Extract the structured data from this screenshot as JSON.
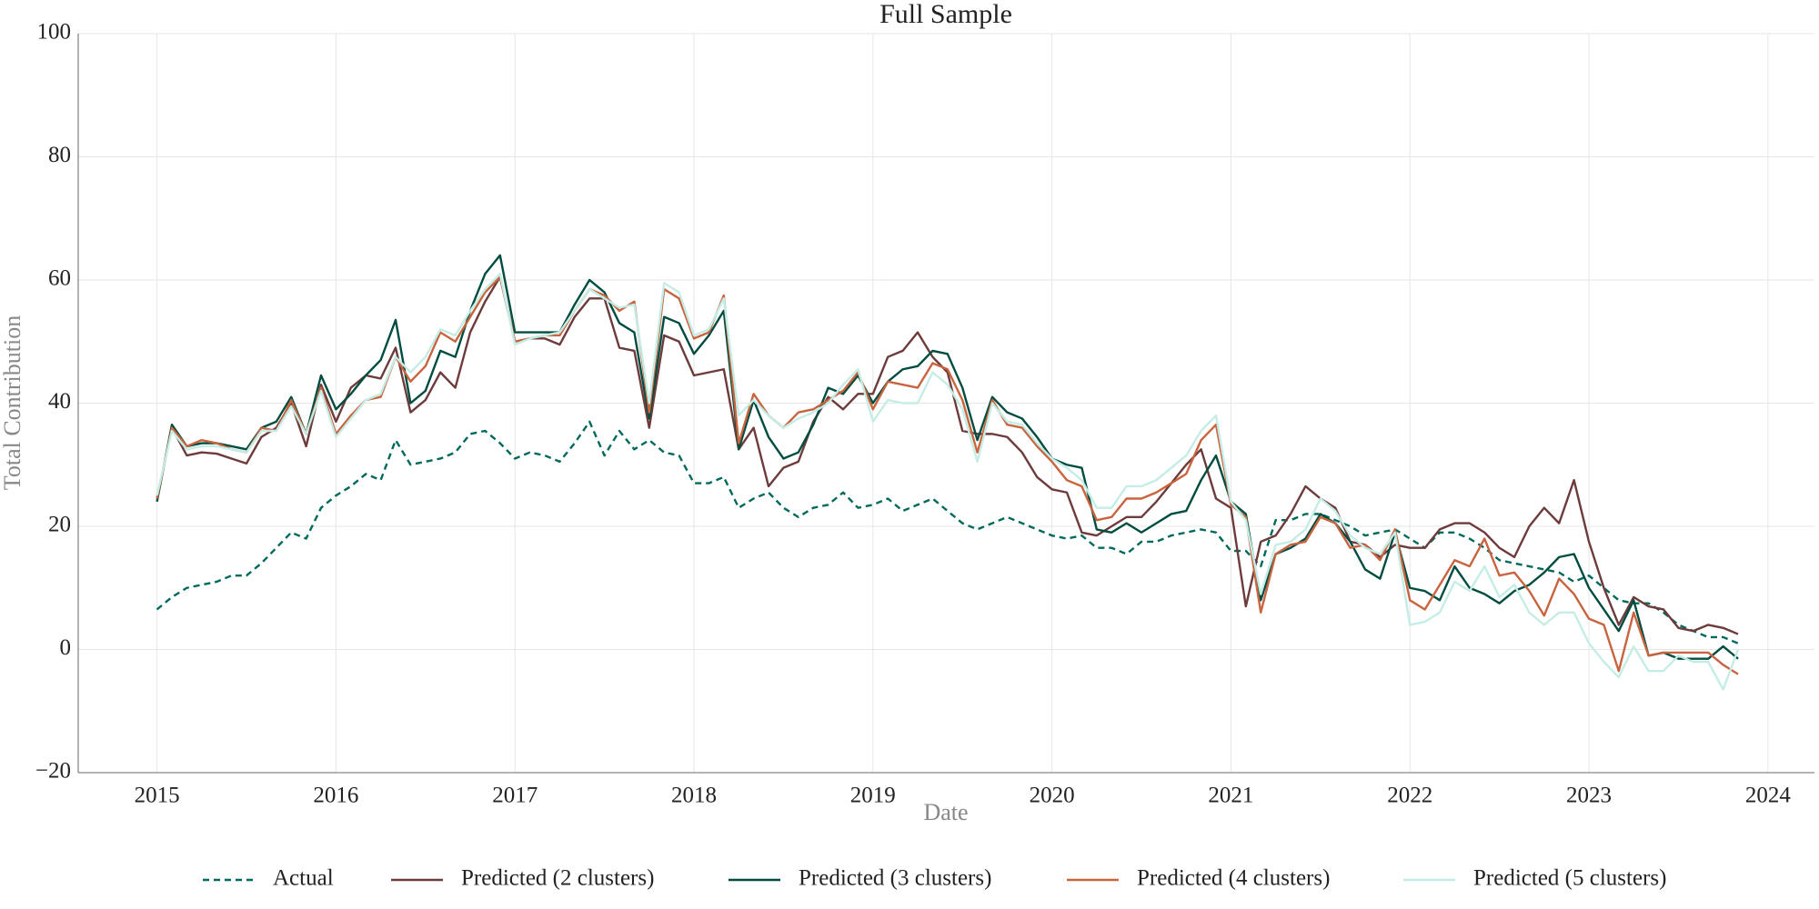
{
  "chart_data": {
    "type": "line",
    "title": "Full Sample",
    "xlabel": "Date",
    "ylabel": "Total Contribution",
    "x": [
      "2015-01",
      "2015-02",
      "2015-03",
      "2015-04",
      "2015-05",
      "2015-06",
      "2015-07",
      "2015-08",
      "2015-09",
      "2015-10",
      "2015-11",
      "2015-12",
      "2016-01",
      "2016-02",
      "2016-03",
      "2016-04",
      "2016-05",
      "2016-06",
      "2016-07",
      "2016-08",
      "2016-09",
      "2016-10",
      "2016-11",
      "2016-12",
      "2017-01",
      "2017-02",
      "2017-03",
      "2017-04",
      "2017-05",
      "2017-06",
      "2017-07",
      "2017-08",
      "2017-09",
      "2017-10",
      "2017-11",
      "2017-12",
      "2018-01",
      "2018-02",
      "2018-03",
      "2018-04",
      "2018-05",
      "2018-06",
      "2018-07",
      "2018-08",
      "2018-09",
      "2018-10",
      "2018-11",
      "2018-12",
      "2019-01",
      "2019-02",
      "2019-03",
      "2019-04",
      "2019-05",
      "2019-06",
      "2019-07",
      "2019-08",
      "2019-09",
      "2019-10",
      "2019-11",
      "2019-12",
      "2020-01",
      "2020-02",
      "2020-03",
      "2020-04",
      "2020-05",
      "2020-06",
      "2020-07",
      "2020-08",
      "2020-09",
      "2020-10",
      "2020-11",
      "2020-12",
      "2021-01",
      "2021-02",
      "2021-03",
      "2021-04",
      "2021-05",
      "2021-06",
      "2021-07",
      "2021-08",
      "2021-09",
      "2021-10",
      "2021-11",
      "2021-12",
      "2022-01",
      "2022-02",
      "2022-03",
      "2022-04",
      "2022-05",
      "2022-06",
      "2022-07",
      "2022-08",
      "2022-09",
      "2022-10",
      "2022-11",
      "2022-12",
      "2023-01",
      "2023-02",
      "2023-03",
      "2023-04",
      "2023-05",
      "2023-06",
      "2023-07",
      "2023-08",
      "2023-09",
      "2023-10",
      "2023-11"
    ],
    "series": [
      {
        "name": "Actual",
        "color": "#00695c",
        "linestyle": "dashed",
        "values": [
          6.5,
          8.5,
          10,
          10.5,
          11,
          12,
          12,
          14,
          16.5,
          19,
          18,
          23,
          25,
          26.5,
          28.5,
          27.5,
          34,
          30,
          30.5,
          31,
          32,
          35,
          35.5,
          33.5,
          31,
          32,
          31.5,
          30.5,
          33.5,
          37,
          31.5,
          35.5,
          32.5,
          34,
          32,
          31.5,
          27,
          27,
          28,
          23,
          24.5,
          25.5,
          23,
          21.5,
          23,
          23.5,
          25.5,
          23,
          23.5,
          24.5,
          22.5,
          23.5,
          24.5,
          22.5,
          20.5,
          19.5,
          20.5,
          21.5,
          20.5,
          19.5,
          18.5,
          18,
          18.5,
          16.5,
          16.5,
          15.5,
          17.5,
          17.5,
          18.5,
          19,
          19.5,
          19,
          16,
          16,
          13.5,
          21,
          21,
          22,
          22,
          21,
          20,
          18.5,
          19,
          19.5,
          18,
          16.5,
          19,
          19,
          18,
          16.5,
          14.5,
          14,
          13.5,
          13,
          12.5,
          11,
          12,
          10,
          8,
          7.5,
          7.5,
          6,
          4,
          3,
          2,
          2,
          1
        ]
      },
      {
        "name": "Predicted (2 clusters)",
        "color": "#6d3b3b",
        "linestyle": "solid",
        "values": [
          24.5,
          36,
          31.5,
          32,
          31.8,
          31,
          30.2,
          34.5,
          36,
          40,
          33,
          43,
          37,
          42.5,
          44.5,
          44,
          49,
          38.5,
          40.5,
          45,
          42.5,
          51.5,
          56.5,
          60.5,
          50,
          50.5,
          50.5,
          49.5,
          54,
          57,
          57,
          49,
          48.5,
          36,
          51,
          50,
          44.5,
          45,
          45.5,
          32.5,
          36,
          26.5,
          29.5,
          30.5,
          37,
          41,
          39,
          41.5,
          41.5,
          47.5,
          48.5,
          51.5,
          47.5,
          45,
          35.5,
          35,
          35,
          34.5,
          32,
          28,
          26,
          25.5,
          19,
          18.5,
          20,
          21.5,
          21.5,
          24,
          27,
          30,
          32.5,
          24.5,
          23,
          7,
          17.5,
          18.5,
          22,
          26.5,
          24.5,
          23,
          17.5,
          17,
          15,
          17,
          16.5,
          16.5,
          19.5,
          20.5,
          20.5,
          19,
          16.5,
          15,
          20,
          23,
          20.5,
          27.5,
          17.5,
          10,
          4,
          8.5,
          7,
          6.5,
          3.5,
          3,
          4,
          3.5,
          2.5
        ]
      },
      {
        "name": "Predicted (3 clusters)",
        "color": "#004d40",
        "linestyle": "solid",
        "values": [
          24,
          36.5,
          33,
          33.5,
          33.5,
          33,
          32.5,
          36,
          37,
          41,
          35,
          44.5,
          39,
          41.5,
          44.5,
          47,
          53.5,
          40,
          42,
          48.5,
          47.5,
          55,
          61,
          64,
          51.5,
          51.5,
          51.5,
          51.5,
          56,
          60,
          58,
          53,
          51.5,
          37.5,
          54,
          53,
          48,
          51,
          55,
          32.5,
          40.5,
          34.5,
          31,
          32,
          36.5,
          42.5,
          41.5,
          44.5,
          40,
          43.5,
          45.5,
          46,
          48.5,
          48,
          42.5,
          34,
          41,
          38.5,
          37.5,
          34.5,
          31,
          30,
          29.5,
          19.5,
          19,
          20.5,
          19,
          20.5,
          22,
          22.5,
          27.5,
          31.5,
          24,
          22,
          8,
          15.5,
          16.5,
          18,
          22,
          20.5,
          17.5,
          13,
          11.5,
          19,
          10,
          9.5,
          8,
          13.5,
          10,
          9,
          7.5,
          9.5,
          10.5,
          12.5,
          15,
          15.5,
          10,
          6.5,
          3,
          8,
          -1,
          -0.5,
          -1.5,
          -1.5,
          -1.5,
          0.5,
          -1.5
        ]
      },
      {
        "name": "Predicted (4 clusters)",
        "color": "#c8643f",
        "linestyle": "solid",
        "values": [
          24.5,
          36,
          33,
          34,
          33.5,
          32.5,
          32,
          36,
          35.5,
          40.5,
          35,
          42.5,
          35,
          38,
          40.5,
          41,
          47.5,
          43.5,
          46,
          51.5,
          50,
          54,
          58,
          60.5,
          50,
          50.5,
          51,
          51,
          55,
          58.5,
          57.5,
          55,
          56.5,
          38.5,
          58.5,
          57,
          50.5,
          51.5,
          57.5,
          33.5,
          41.5,
          38,
          36,
          38.5,
          39,
          40.5,
          42,
          45,
          39,
          43.5,
          43,
          42.5,
          46.5,
          45.5,
          40.5,
          32,
          40.5,
          36.5,
          36,
          33,
          30.5,
          27.5,
          26.5,
          21,
          21.5,
          24.5,
          24.5,
          25.5,
          27,
          28.5,
          34,
          36.5,
          23.5,
          21.5,
          6,
          15.5,
          17,
          17.5,
          21.5,
          20.5,
          16.5,
          17,
          14.5,
          19.5,
          8,
          6.5,
          10.5,
          14.5,
          13.5,
          18,
          12,
          12.5,
          9.5,
          5.5,
          11.5,
          9,
          5,
          4,
          -3.5,
          6,
          -1,
          -0.5,
          -0.5,
          -0.5,
          -0.5,
          -2.5,
          -4
        ]
      },
      {
        "name": "Predicted (5 clusters)",
        "color": "#c5ede5",
        "linestyle": "solid",
        "values": [
          25,
          35.5,
          32.5,
          33,
          33,
          32.5,
          32,
          35.5,
          35.5,
          39.5,
          35,
          42,
          34.5,
          37.5,
          40.5,
          41.5,
          47.5,
          45,
          47.5,
          52,
          51,
          55,
          58.5,
          61,
          49.5,
          50.5,
          51,
          51.5,
          55,
          58.5,
          57,
          55.5,
          56,
          40,
          59.5,
          58,
          51,
          52,
          57,
          38,
          40.5,
          38,
          36,
          37.5,
          38.5,
          40,
          43,
          45.5,
          37,
          40.5,
          40,
          40,
          45,
          43,
          39,
          30.5,
          40,
          37,
          36.5,
          33.5,
          31,
          29.5,
          27.5,
          23,
          23,
          26.5,
          26.5,
          27.5,
          29.5,
          31.5,
          35.5,
          38,
          24,
          21,
          9,
          17,
          17.5,
          19.5,
          24.5,
          22.5,
          18.5,
          16.5,
          15.5,
          19,
          4,
          4.5,
          6,
          11,
          9.5,
          13.5,
          8.5,
          10.5,
          6,
          4,
          6,
          6,
          1,
          -2,
          -4.5,
          0.5,
          -3.5,
          -3.5,
          -1,
          -2,
          -2,
          -6.5,
          0
        ]
      }
    ],
    "xlim": [
      2014.56,
      2024.26
    ],
    "xticks": [
      2015,
      2016,
      2017,
      2018,
      2019,
      2020,
      2021,
      2022,
      2023,
      2024
    ],
    "ylim": [
      -20,
      100
    ],
    "yticks": [
      {
        "value": -20,
        "label": "−20"
      },
      0,
      20,
      40,
      60,
      80,
      100
    ],
    "grid": true,
    "legend": "bottom"
  }
}
